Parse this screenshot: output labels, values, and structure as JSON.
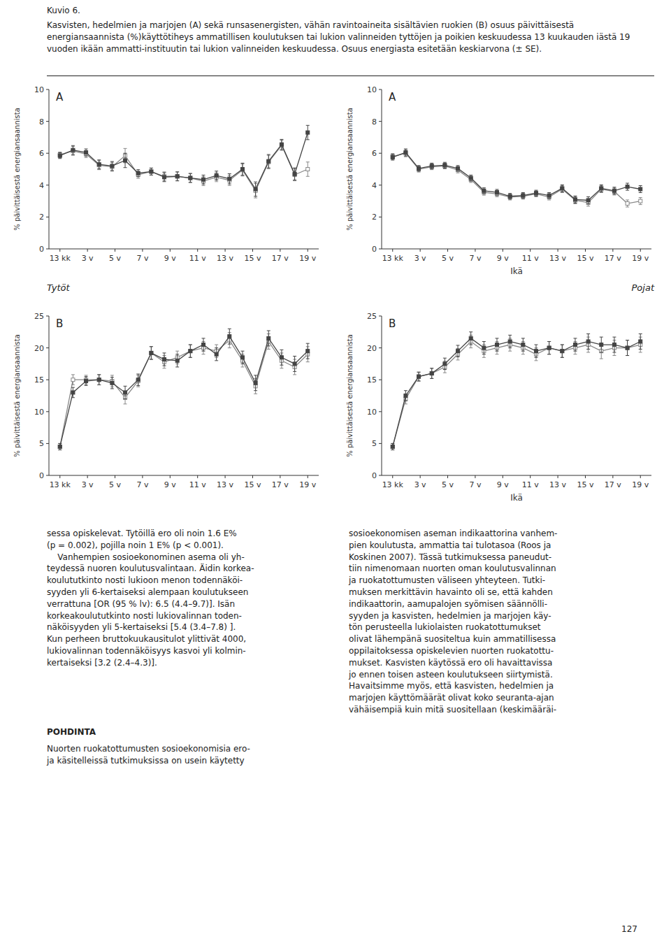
{
  "title": "Kuvio 6.",
  "subtitle": "Kasvisten, hedelmien ja marjojen (A) sekä runsasenergisten, vähän ravintoaineita sisältävien ruokien (B) osuus päivittäisestä energiansaannista (%)käyttötiheys ammatillisen koulutuksen tai lukion valinneiden tyttöjen ja poikien keskuudessa 13 kuukauden iästä 19 vuoden ikään ammatti-instituutin tai lukion valinneiden keskuudessa. Osuus energiasta esitetään keskiarvona (± SE).",
  "annotations": [
    "Tytöt",
    "Pojat",
    "sessa opiskelevat. Tytöillä ero oli noin 1.6 E%\n(p = 0.002), pojilla noin 1 E% (p < 0.001).\n    Vanhempien sosioekonominen asema oli yh-\nteydessä nuoren koulutusvalintaan. Äidin korkea-\nkoulututkinto nosti lukioon menon todennäköi-\nsyyden yli 6-kertaiseksi alempaan koulutukseen\nverrattuna [OR (95 % lv): 6.5 (4.4–9.7)]. Isän\nkorkeakoulututkinto nosti lukiovalinnan toden-\nnäköisyyden yli 5-kertaiseksi [5.4 (3.4–7.8) ].\nKun perheen bruttokuukausitulot ylittivät 4000,\nlukiovalinnan todennäköisyys kasvoi yli kolmin-\nkertaiseksi [3.2 (2.4–4.3)].",
    "POHDINTA",
    "Nuorten ruokatottumusten sosioekonomisia ero-\nja käsitelleissä tutkimuksissa on usein käytetty",
    "sosioekonomisen aseman indikaattorina vanhem-\npien koulutusta, ammattia tai tulotasoa (Roos ja\nKoskinen 2007). Tässä tutkimuksessa paneudut-\ntiin nimenomaan nuorten oman koulutusvalinnan\nja ruokatottumusten väliseen yhteyteen. Tutki-\nmuksen merkittävin havainto oli se, että kahden\nindikaattorin, aamupalojen syömisen säännölli-\nsyyden ja kasvisten, hedelmien ja marjojen käy-\ntön perusteella lukiolaisten ruokatottumukset\nolivat lähempänä suositeltua kuin ammatillisessa\noppilaitoksessa opiskelevien nuorten ruokatottu-\nmukset. Kasvisten käytössä ero oli havaittavissa\njo ennen toisen asteen koulutukseen siirtymistä.\nHavaitsimme myös, että kasvisten, hedelmien ja\nmarjojen käyttömäärät olivat koko seuranta-ajan\nvähäisempiä kuin mitä suositellaan (keskimääräi-",
    "127"
  ],
  "chart_data": [
    {
      "type": "line",
      "title": "A",
      "ylabel": "% päivittäisestä energiansaannista",
      "grid": false,
      "x": [
        0,
        0.47368421052631576,
        0.9473684210526315,
        1.4210526315789473,
        1.894736842105263,
        2.3684210526315788,
        2.8421052631578947,
        3.3157894736842106,
        3.789473684210526,
        4.263157894736842,
        4.7368421052631575,
        5.2105263157894735,
        5.684210526315789,
        6.157894736842105,
        6.631578947368421,
        7.105263157894736,
        7.578947368421052,
        8.052631578947368,
        8.526315789473683,
        9
      ],
      "xlim": [
        -0.4,
        9.4
      ],
      "xticks": [
        {
          "value": 0,
          "label": "13 kk"
        },
        {
          "value": 1,
          "label": "3 v"
        },
        {
          "value": 2,
          "label": "5 v"
        },
        {
          "value": 3,
          "label": "7 v"
        },
        {
          "value": 4,
          "label": "9 v"
        },
        {
          "value": 5,
          "label": "11 v"
        },
        {
          "value": 6,
          "label": "13 v"
        },
        {
          "value": 7,
          "label": "15 v"
        },
        {
          "value": 8,
          "label": "17 v"
        },
        {
          "value": 9,
          "label": "19 v"
        }
      ],
      "ylim": [
        0,
        10
      ],
      "yticks": [
        0,
        2,
        4,
        6,
        8,
        10
      ],
      "series": [
        {
          "color": "#444444",
          "marker": "square",
          "values": [
            5.85,
            6.2,
            6.05,
            5.3,
            5.2,
            5.55,
            4.75,
            4.85,
            4.5,
            4.55,
            4.45,
            4.35,
            4.6,
            4.4,
            5.0,
            3.75,
            5.5,
            6.55,
            4.7,
            7.3
          ],
          "errors": [
            0.18,
            0.28,
            0.22,
            0.28,
            0.28,
            0.45,
            0.22,
            0.22,
            0.28,
            0.28,
            0.28,
            0.28,
            0.28,
            0.32,
            0.38,
            0.45,
            0.42,
            0.32,
            0.38,
            0.45
          ]
        },
        {
          "color": "#888888",
          "marker": "square-open",
          "values": [
            5.9,
            6.15,
            5.95,
            5.25,
            5.15,
            5.85,
            4.65,
            4.85,
            4.55,
            4.55,
            4.45,
            4.25,
            4.5,
            4.3,
            4.95,
            3.65,
            5.45,
            6.5,
            4.65,
            5.0
          ],
          "errors": [
            0.18,
            0.28,
            0.22,
            0.28,
            0.28,
            0.45,
            0.22,
            0.22,
            0.28,
            0.28,
            0.28,
            0.28,
            0.28,
            0.32,
            0.38,
            0.45,
            0.42,
            0.32,
            0.38,
            0.45
          ]
        }
      ]
    },
    {
      "type": "line",
      "title": "A",
      "ylabel": "% päivittäisestä energiansaannista",
      "xlabel": "Ikä",
      "grid": false,
      "x": [
        0,
        0.47368421052631576,
        0.9473684210526315,
        1.4210526315789473,
        1.894736842105263,
        2.3684210526315788,
        2.8421052631578947,
        3.3157894736842106,
        3.789473684210526,
        4.263157894736842,
        4.7368421052631575,
        5.2105263157894735,
        5.684210526315789,
        6.157894736842105,
        6.631578947368421,
        7.105263157894736,
        7.578947368421052,
        8.052631578947368,
        8.526315789473683,
        9
      ],
      "xlim": [
        -0.4,
        9.4
      ],
      "xticks": [
        {
          "value": 0,
          "label": "13 kk"
        },
        {
          "value": 1,
          "label": "3 v"
        },
        {
          "value": 2,
          "label": "5 v"
        },
        {
          "value": 3,
          "label": "7 v"
        },
        {
          "value": 4,
          "label": "9 v"
        },
        {
          "value": 5,
          "label": "11 v"
        },
        {
          "value": 6,
          "label": "13 v"
        },
        {
          "value": 7,
          "label": "15 v"
        },
        {
          "value": 8,
          "label": "17 v"
        },
        {
          "value": 9,
          "label": "19 v"
        }
      ],
      "ylim": [
        0,
        10
      ],
      "yticks": [
        0,
        2,
        4,
        6,
        8,
        10
      ],
      "series": [
        {
          "color": "#444444",
          "marker": "square",
          "values": [
            5.75,
            6.05,
            5.05,
            5.2,
            5.25,
            5.05,
            4.45,
            3.65,
            3.55,
            3.3,
            3.35,
            3.5,
            3.35,
            3.8,
            3.1,
            3.05,
            3.8,
            3.65,
            3.9,
            3.75
          ],
          "errors": [
            0.18,
            0.22,
            0.18,
            0.18,
            0.18,
            0.18,
            0.18,
            0.18,
            0.18,
            0.18,
            0.18,
            0.18,
            0.18,
            0.22,
            0.22,
            0.22,
            0.22,
            0.22,
            0.22,
            0.22
          ]
        },
        {
          "color": "#888888",
          "marker": "square-open",
          "values": [
            5.8,
            6.0,
            5.0,
            5.15,
            5.2,
            4.95,
            4.35,
            3.55,
            3.45,
            3.25,
            3.3,
            3.45,
            3.25,
            3.75,
            3.05,
            2.9,
            3.75,
            3.6,
            2.85,
            3.0
          ],
          "errors": [
            0.18,
            0.22,
            0.18,
            0.18,
            0.18,
            0.18,
            0.18,
            0.18,
            0.18,
            0.18,
            0.18,
            0.18,
            0.18,
            0.22,
            0.22,
            0.22,
            0.22,
            0.22,
            0.22,
            0.22
          ]
        }
      ]
    },
    {
      "type": "line",
      "title": "B",
      "ylabel": "% päivittäisestä energiansaannista",
      "grid": false,
      "x": [
        0,
        0.47368421052631576,
        0.9473684210526315,
        1.4210526315789473,
        1.894736842105263,
        2.3684210526315788,
        2.8421052631578947,
        3.3157894736842106,
        3.789473684210526,
        4.263157894736842,
        4.7368421052631575,
        5.2105263157894735,
        5.684210526315789,
        6.157894736842105,
        6.631578947368421,
        7.105263157894736,
        7.578947368421052,
        8.052631578947368,
        8.526315789473683,
        9
      ],
      "xlim": [
        -0.4,
        9.4
      ],
      "xticks": [
        {
          "value": 0,
          "label": "13 kk"
        },
        {
          "value": 1,
          "label": "3 v"
        },
        {
          "value": 2,
          "label": "5 v"
        },
        {
          "value": 3,
          "label": "7 v"
        },
        {
          "value": 4,
          "label": "9 v"
        },
        {
          "value": 5,
          "label": "11 v"
        },
        {
          "value": 6,
          "label": "13 v"
        },
        {
          "value": 7,
          "label": "15 v"
        },
        {
          "value": 8,
          "label": "17 v"
        },
        {
          "value": 9,
          "label": "19 v"
        }
      ],
      "ylim": [
        0,
        25
      ],
      "yticks": [
        0,
        5,
        10,
        15,
        20,
        25
      ],
      "series": [
        {
          "color": "#444444",
          "marker": "square",
          "values": [
            4.5,
            13.0,
            14.8,
            15.0,
            14.5,
            13.0,
            15.0,
            19.2,
            18.2,
            18.0,
            19.5,
            20.5,
            19.0,
            21.8,
            18.5,
            14.5,
            21.5,
            18.5,
            17.5,
            19.5
          ],
          "errors": [
            0.5,
            0.8,
            0.7,
            0.8,
            0.9,
            1.0,
            0.9,
            1.0,
            1.0,
            1.0,
            1.0,
            1.0,
            1.0,
            1.2,
            1.0,
            1.2,
            1.2,
            1.2,
            1.2,
            1.2
          ]
        },
        {
          "color": "#888888",
          "marker": "square-open",
          "values": [
            4.5,
            15.0,
            15.0,
            15.0,
            14.8,
            12.2,
            14.8,
            19.2,
            17.8,
            18.5,
            19.5,
            20.0,
            19.5,
            21.2,
            18.0,
            14.0,
            21.0,
            18.0,
            17.0,
            19.0
          ],
          "errors": [
            0.5,
            0.8,
            0.7,
            0.8,
            0.9,
            1.0,
            0.9,
            1.0,
            1.0,
            1.0,
            1.0,
            1.0,
            1.0,
            1.2,
            1.0,
            1.2,
            1.2,
            1.2,
            1.2,
            1.2
          ]
        }
      ]
    },
    {
      "type": "line",
      "title": "B",
      "ylabel": "% päivittäisestä energiansaannista",
      "xlabel": "Ikä",
      "grid": false,
      "x": [
        0,
        0.47368421052631576,
        0.9473684210526315,
        1.4210526315789473,
        1.894736842105263,
        2.3684210526315788,
        2.8421052631578947,
        3.3157894736842106,
        3.789473684210526,
        4.263157894736842,
        4.7368421052631575,
        5.2105263157894735,
        5.684210526315789,
        6.157894736842105,
        6.631578947368421,
        7.105263157894736,
        7.578947368421052,
        8.052631578947368,
        8.526315789473683,
        9
      ],
      "xlim": [
        -0.4,
        9.4
      ],
      "xticks": [
        {
          "value": 0,
          "label": "13 kk"
        },
        {
          "value": 1,
          "label": "3 v"
        },
        {
          "value": 2,
          "label": "5 v"
        },
        {
          "value": 3,
          "label": "7 v"
        },
        {
          "value": 4,
          "label": "9 v"
        },
        {
          "value": 5,
          "label": "11 v"
        },
        {
          "value": 6,
          "label": "13 v"
        },
        {
          "value": 7,
          "label": "15 v"
        },
        {
          "value": 8,
          "label": "17 v"
        },
        {
          "value": 9,
          "label": "19 v"
        }
      ],
      "ylim": [
        0,
        25
      ],
      "yticks": [
        0,
        5,
        10,
        15,
        20,
        25
      ],
      "series": [
        {
          "color": "#444444",
          "marker": "square",
          "values": [
            4.5,
            12.5,
            15.5,
            16.0,
            17.5,
            19.5,
            21.5,
            20.0,
            20.5,
            21.0,
            20.5,
            19.5,
            20.0,
            19.5,
            20.5,
            21.0,
            20.5,
            20.5,
            20.0,
            21.0
          ],
          "errors": [
            0.5,
            0.8,
            0.7,
            0.8,
            0.9,
            0.9,
            1.0,
            1.0,
            1.0,
            1.0,
            1.0,
            1.0,
            1.0,
            1.0,
            1.0,
            1.2,
            1.2,
            1.2,
            1.2,
            1.2
          ]
        },
        {
          "color": "#888888",
          "marker": "square-open",
          "values": [
            4.5,
            12.0,
            15.5,
            16.0,
            17.0,
            19.0,
            21.0,
            19.5,
            20.0,
            20.5,
            20.0,
            19.0,
            20.0,
            19.5,
            20.0,
            20.5,
            19.5,
            20.0,
            20.0,
            20.5
          ],
          "errors": [
            0.5,
            0.8,
            0.7,
            0.8,
            0.9,
            0.9,
            1.0,
            1.0,
            1.0,
            1.0,
            1.0,
            1.0,
            1.0,
            1.0,
            1.0,
            1.2,
            1.2,
            1.2,
            1.2,
            1.2
          ]
        }
      ]
    }
  ]
}
